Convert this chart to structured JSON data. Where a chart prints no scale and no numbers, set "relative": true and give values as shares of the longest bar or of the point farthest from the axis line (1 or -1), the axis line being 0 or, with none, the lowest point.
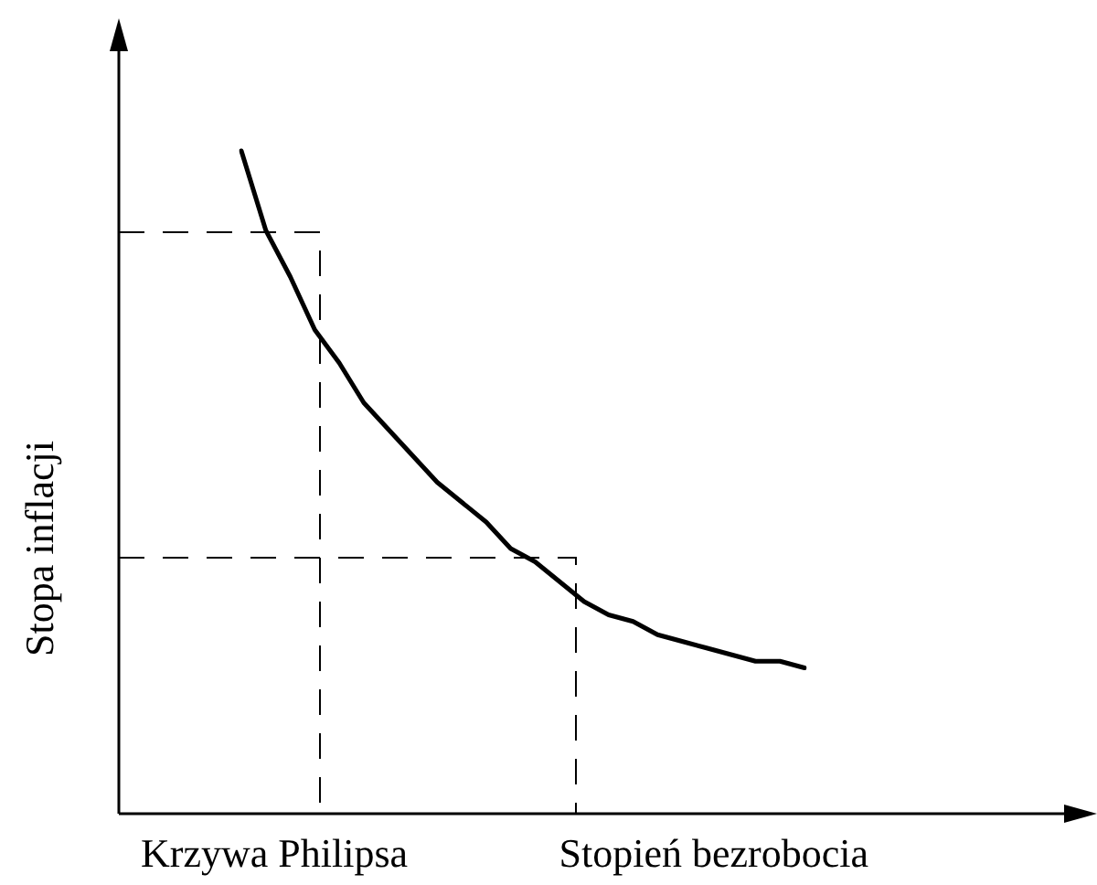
{
  "chart_data": {
    "type": "line",
    "relative": true,
    "xlabel": "Stopień bezrobocia",
    "ylabel": "Stopa inflacji",
    "annotations": [
      "Krzywa Philipsa"
    ],
    "legend": false,
    "marker": "none",
    "categories": [
      null,
      null,
      null,
      null,
      null,
      null,
      null,
      null,
      null,
      null,
      null,
      null,
      null,
      null,
      null,
      null,
      null,
      null,
      null,
      null,
      null,
      null,
      null,
      null
    ],
    "series": [
      {
        "color": "#000000",
        "line_style": "solid",
        "values": [
          1,
          0.88,
          0.81,
          0.73,
          0.68,
          0.62,
          0.58,
          0.54,
          0.5,
          0.47,
          0.44,
          0.4,
          0.38,
          0.35,
          0.32,
          0.3,
          0.29,
          0.27,
          0.26,
          0.25,
          0.24,
          0.23,
          0.23,
          0.22
        ]
      }
    ]
  }
}
